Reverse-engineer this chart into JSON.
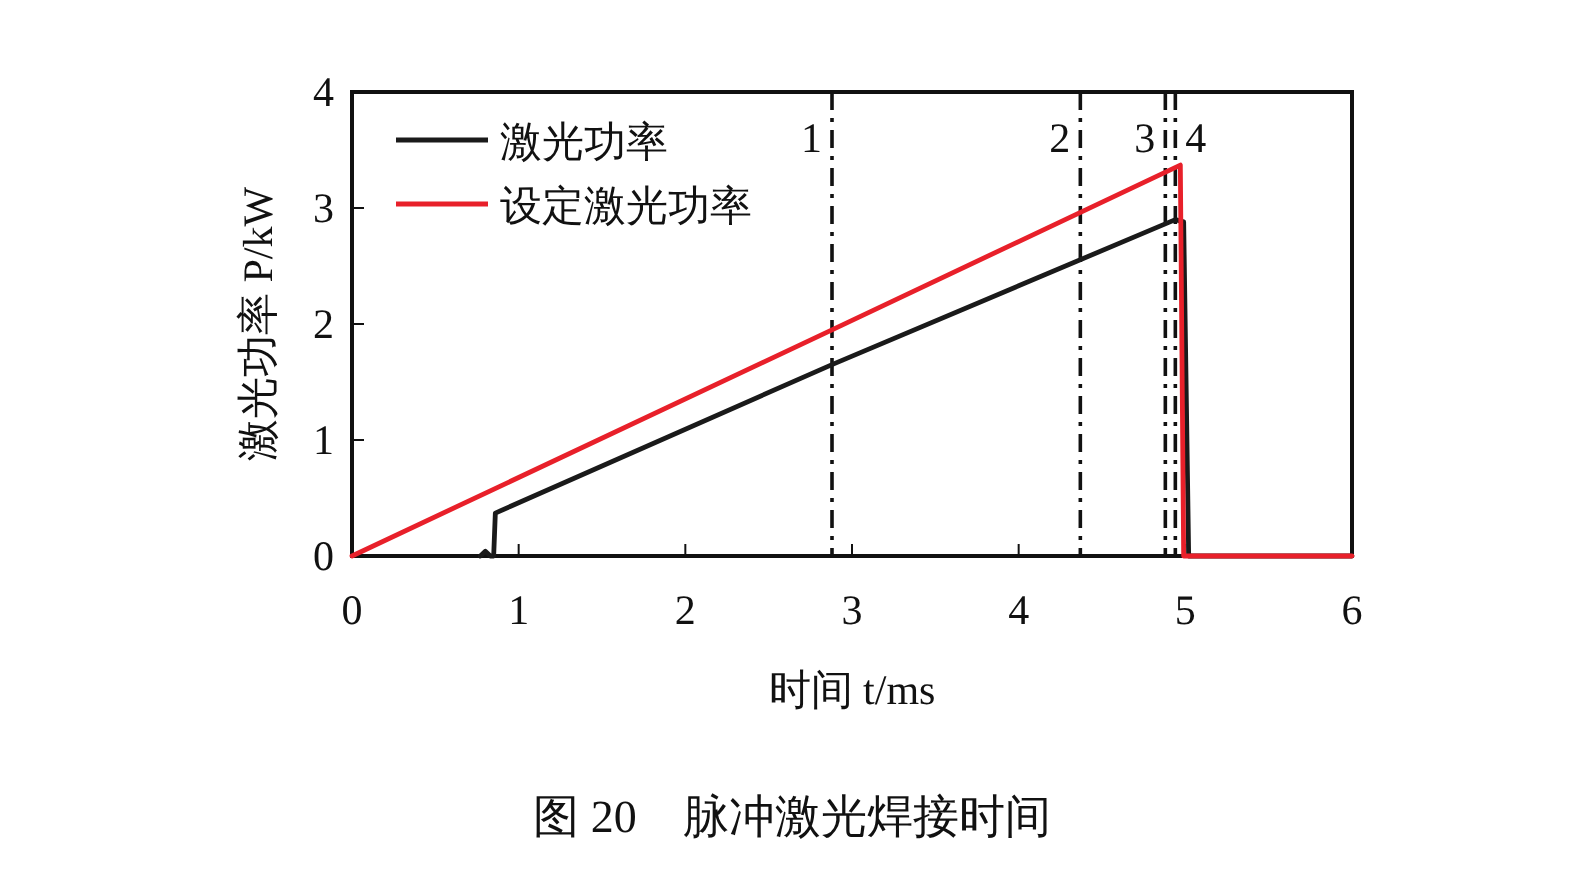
{
  "chart_data": {
    "type": "line",
    "title": "图 20　脉冲激光焊接时间",
    "xlabel": "时间 t/ms",
    "ylabel": "激光功率 P/kW",
    "xlim": [
      0,
      6
    ],
    "ylim": [
      0,
      4
    ],
    "xticks": [
      0,
      1,
      2,
      3,
      4,
      5,
      6
    ],
    "yticks": [
      0,
      1,
      2,
      3,
      4
    ],
    "legend": "top left",
    "grid": false,
    "line_style": "solid",
    "series": [
      {
        "name": "激光功率",
        "color": "#1a1a1a",
        "x": [
          0.77,
          0.8,
          0.83,
          0.85,
          0.86,
          2.88,
          4.94,
          4.99,
          5.02,
          5.1,
          6.0
        ],
        "values": [
          0,
          0.04,
          0,
          0,
          0.37,
          1.65,
          2.9,
          2.88,
          0,
          0,
          0
        ]
      },
      {
        "name": "设定激光功率",
        "color": "#e8202a",
        "x": [
          0,
          2.88,
          4.97,
          4.99,
          6.0
        ],
        "values": [
          0,
          1.95,
          3.37,
          0,
          0
        ]
      }
    ],
    "ref_lines": [
      {
        "axis": "x",
        "value": 2.88,
        "line_style": "dashdot"
      },
      {
        "axis": "x",
        "value": 4.37,
        "line_style": "dashdot"
      },
      {
        "axis": "x",
        "value": 4.88,
        "line_style": "dashdot"
      },
      {
        "axis": "x",
        "value": 4.94,
        "line_style": "dashdot"
      }
    ],
    "annotations": [
      {
        "text": "1",
        "x": 2.88,
        "y": 3.6
      },
      {
        "text": "2",
        "x": 4.37,
        "y": 3.6
      },
      {
        "text": "3",
        "x": 4.88,
        "y": 3.6
      },
      {
        "text": "4",
        "x": 4.94,
        "y": 3.6
      }
    ]
  }
}
